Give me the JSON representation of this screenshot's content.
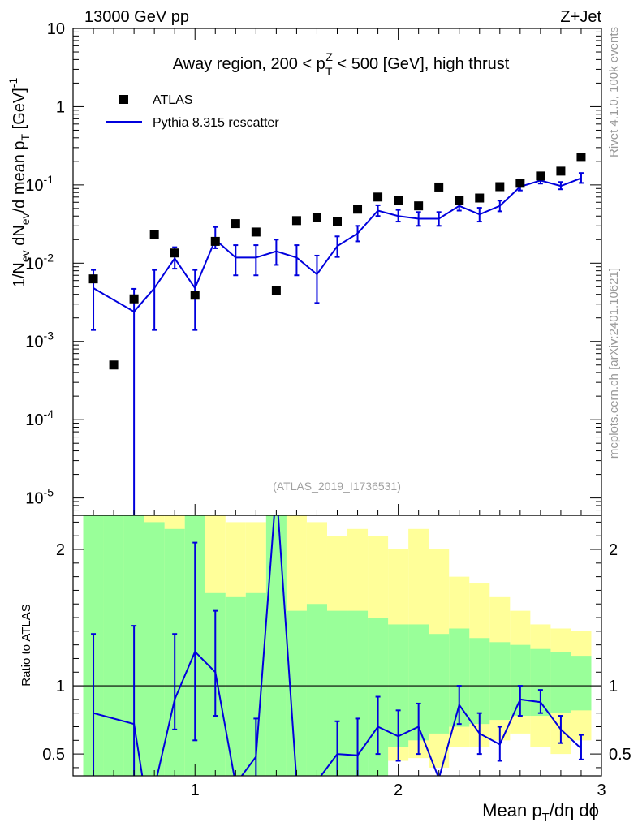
{
  "header": {
    "left": "13000 GeV pp",
    "right": "Z+Jet"
  },
  "subtitle": "Away region, 200 < pTZ < 500 [GeV], high thrust",
  "side_labels": {
    "top": "Rivet 4.1.0,  100k events",
    "bottom": "mcplots.cern.ch [arXiv:2401.10621]"
  },
  "watermark": "(ATLAS_2019_I1736531)",
  "legend": {
    "data": "ATLAS",
    "mc": "Pythia 8.315 rescatter"
  },
  "colors": {
    "mc": "#0000dd",
    "data": "#000000",
    "band_inner": "#99ff99",
    "band_outer": "#ffff99"
  },
  "chart_data": [
    {
      "type": "scatter",
      "title": "Away region, 200 < pTZ < 500 [GeV], high thrust",
      "ylabel": "1/Nev dNev/d mean pT [GeV]^-1",
      "yscale": "log",
      "ylim": [
        6e-06,
        10
      ],
      "xlim": [
        0.4,
        3.0
      ],
      "y_tick_labels": [
        "10^-5",
        "10^-4",
        "10^-3",
        "10^-2",
        "10^-1",
        "1",
        "10"
      ],
      "x": [
        0.5,
        0.6,
        0.7,
        0.8,
        0.9,
        1.0,
        1.1,
        1.2,
        1.3,
        1.4,
        1.5,
        1.6,
        1.7,
        1.8,
        1.9,
        2.0,
        2.1,
        2.2,
        2.3,
        2.4,
        2.5,
        2.6,
        2.7,
        2.8,
        2.9
      ],
      "series": [
        {
          "name": "ATLAS",
          "values": [
            0.0063,
            0.0005,
            0.0035,
            0.023,
            0.0135,
            0.0039,
            0.019,
            0.032,
            0.025,
            0.0045,
            0.035,
            0.038,
            0.034,
            0.049,
            0.07,
            0.064,
            0.054,
            0.094,
            0.064,
            0.068,
            0.095,
            0.105,
            0.13,
            0.15,
            0.225
          ]
        },
        {
          "name": "Pythia 8.315 rescatter",
          "values": [
            0.0048,
            null,
            0.0024,
            0.0048,
            0.0115,
            0.0048,
            0.02,
            0.0118,
            0.0118,
            0.0142,
            0.0118,
            0.0072,
            0.0165,
            0.024,
            0.047,
            0.04,
            0.037,
            0.037,
            0.054,
            0.042,
            0.054,
            0.095,
            0.114,
            0.097,
            0.122
          ],
          "err_low": [
            0.0014,
            null,
            1e-06,
            0.0014,
            0.0085,
            0.0014,
            0.0155,
            0.007,
            0.007,
            0.0095,
            0.007,
            0.0031,
            0.012,
            0.019,
            0.04,
            0.034,
            0.03,
            0.03,
            0.047,
            0.034,
            0.046,
            0.085,
            0.104,
            0.088,
            0.106
          ],
          "err_high": [
            0.0082,
            null,
            0.0047,
            0.0082,
            0.016,
            0.0082,
            0.029,
            0.017,
            0.017,
            0.02,
            0.017,
            0.0125,
            0.022,
            0.03,
            0.055,
            0.048,
            0.045,
            0.045,
            0.063,
            0.051,
            0.063,
            0.105,
            0.123,
            0.109,
            0.142
          ]
        }
      ]
    },
    {
      "type": "line",
      "ylabel": "Ratio to ATLAS",
      "xlabel": "Mean pT/dη dφ",
      "ylim": [
        0.34,
        2.25
      ],
      "xlim": [
        0.4,
        3.0
      ],
      "y_tick_labels": [
        "0.5",
        "1",
        "2"
      ],
      "x_tick_labels": [
        "1",
        "2",
        "3"
      ],
      "bins": [
        0.45,
        0.55,
        0.65,
        0.75,
        0.85,
        0.95,
        1.05,
        1.15,
        1.25,
        1.35,
        1.45,
        1.55,
        1.65,
        1.75,
        1.85,
        1.95,
        2.05,
        2.15,
        2.25,
        2.35,
        2.45,
        2.55,
        2.65,
        2.75,
        2.85,
        2.95
      ],
      "band_outer_top": [
        2.4,
        2.4,
        2.4,
        2.3,
        2.25,
        2.4,
        2.3,
        2.2,
        2.2,
        2.4,
        2.3,
        2.2,
        2.1,
        2.15,
        2.1,
        2.0,
        2.15,
        2.0,
        1.8,
        1.75,
        1.65,
        1.55,
        1.45,
        1.42,
        1.4
      ],
      "band_outer_bottom": [
        0.1,
        0.1,
        0.1,
        0.1,
        0.1,
        0.1,
        0.1,
        0.1,
        0.1,
        0.1,
        0.1,
        0.1,
        0.1,
        0.45,
        0.47,
        0.45,
        0.47,
        0.4,
        0.55,
        0.55,
        0.6,
        0.65,
        0.55,
        0.5,
        0.6
      ],
      "band_inner_top": [
        2.4,
        2.4,
        2.4,
        2.2,
        2.15,
        2.4,
        1.68,
        1.65,
        1.68,
        2.4,
        1.55,
        1.6,
        1.55,
        1.55,
        1.5,
        1.45,
        1.45,
        1.38,
        1.42,
        1.35,
        1.32,
        1.3,
        1.27,
        1.25,
        1.22
      ],
      "band_inner_bottom": [
        0.1,
        0.1,
        0.1,
        0.1,
        0.1,
        0.1,
        0.1,
        0.1,
        0.1,
        0.1,
        0.1,
        0.1,
        0.1,
        0.1,
        0.1,
        0.55,
        0.6,
        0.65,
        0.7,
        0.72,
        0.75,
        0.78,
        0.78,
        0.8,
        0.82
      ],
      "series": [
        {
          "name": "Pythia 8.315 rescatter / ATLAS",
          "x": [
            0.5,
            0.7,
            0.75,
            0.8,
            0.9,
            1.0,
            1.1,
            1.2,
            1.3,
            1.4,
            1.5,
            1.55,
            1.7,
            1.8,
            1.9,
            2.0,
            2.1,
            2.2,
            2.3,
            2.4,
            2.5,
            2.6,
            2.7,
            2.8,
            2.9
          ],
          "values": [
            0.8,
            0.72,
            0.25,
            0.25,
            0.9,
            1.25,
            1.1,
            0.28,
            0.48,
            2.45,
            0.3,
            0.2,
            0.5,
            0.49,
            0.7,
            0.63,
            0.7,
            0.32,
            0.86,
            0.65,
            0.57,
            0.9,
            0.88,
            0.68,
            0.54
          ],
          "err_low": [
            0.2,
            0.2,
            null,
            null,
            0.68,
            0.6,
            0.78,
            null,
            0.22,
            null,
            null,
            null,
            0.3,
            0.2,
            0.5,
            0.45,
            0.5,
            null,
            0.72,
            0.5,
            0.45,
            0.78,
            0.8,
            0.58,
            0.46
          ],
          "err_high": [
            1.38,
            1.44,
            null,
            null,
            1.38,
            2.05,
            1.55,
            null,
            0.76,
            null,
            null,
            null,
            0.74,
            0.76,
            0.92,
            0.82,
            0.87,
            null,
            1.0,
            0.8,
            0.7,
            1.0,
            0.97,
            0.78,
            0.64
          ]
        }
      ],
      "reference": 1.0
    }
  ]
}
